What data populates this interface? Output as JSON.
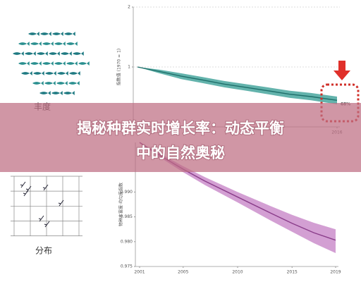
{
  "banner": {
    "lines": [
      "揭秘种群实时增长率：动态平衡",
      "中的自然奥秘"
    ]
  },
  "panels": [
    {
      "label": "丰度"
    },
    {
      "label": "分布"
    }
  ],
  "chart_data": [
    {
      "type": "line",
      "y_label": "指数值 (1970 = 1)",
      "log_scale": true,
      "grid": true,
      "xlim": [
        1970,
        2016
      ],
      "xticks": [
        2016
      ],
      "ylim": [
        0.5,
        2
      ],
      "yticks": [
        1,
        2
      ],
      "x": [
        1970,
        1975,
        1980,
        1985,
        1990,
        1995,
        2000,
        2005,
        2010,
        2016
      ],
      "series": [
        {
          "name": "指数值",
          "color": "#1f6f6a",
          "band_color": "#2f9a90",
          "values": [
            1,
            0.95,
            0.9,
            0.86,
            0.82,
            0.79,
            0.76,
            0.73,
            0.71,
            0.68
          ],
          "lower": [
            1,
            0.93,
            0.87,
            0.83,
            0.79,
            0.76,
            0.73,
            0.7,
            0.68,
            0.65
          ],
          "upper": [
            1,
            0.97,
            0.93,
            0.89,
            0.85,
            0.82,
            0.79,
            0.76,
            0.74,
            0.71
          ]
        }
      ],
      "annotation": "68%"
    },
    {
      "type": "line",
      "y_label": "物种丰富度·均匀度指数",
      "grid": false,
      "xlim": [
        2001,
        2019
      ],
      "xticks": [
        2001,
        2005,
        2010,
        2015,
        2019
      ],
      "ylim": [
        0.975,
        1.0
      ],
      "yticks": [
        {
          "value": 0.99,
          "label": "0.990"
        },
        0.985,
        {
          "value": 0.98,
          "label": "0.980"
        },
        0.975
      ],
      "x": [
        2001,
        2003,
        2005,
        2007,
        2010,
        2013,
        2015,
        2017,
        2019
      ],
      "series": [
        {
          "name": "物种丰富度",
          "color": "#8a3d8a",
          "band_color": "#c47fc4",
          "values": [
            1.0,
            0.9972,
            0.9946,
            0.9922,
            0.989,
            0.9858,
            0.9837,
            0.9818,
            0.9803
          ],
          "lower": [
            0.9998,
            0.9968,
            0.994,
            0.9914,
            0.9879,
            0.9843,
            0.982,
            0.9797,
            0.9777
          ],
          "upper": [
            1.0,
            0.9976,
            0.9952,
            0.993,
            0.99,
            0.9872,
            0.9854,
            0.9838,
            0.9825
          ]
        }
      ]
    }
  ]
}
